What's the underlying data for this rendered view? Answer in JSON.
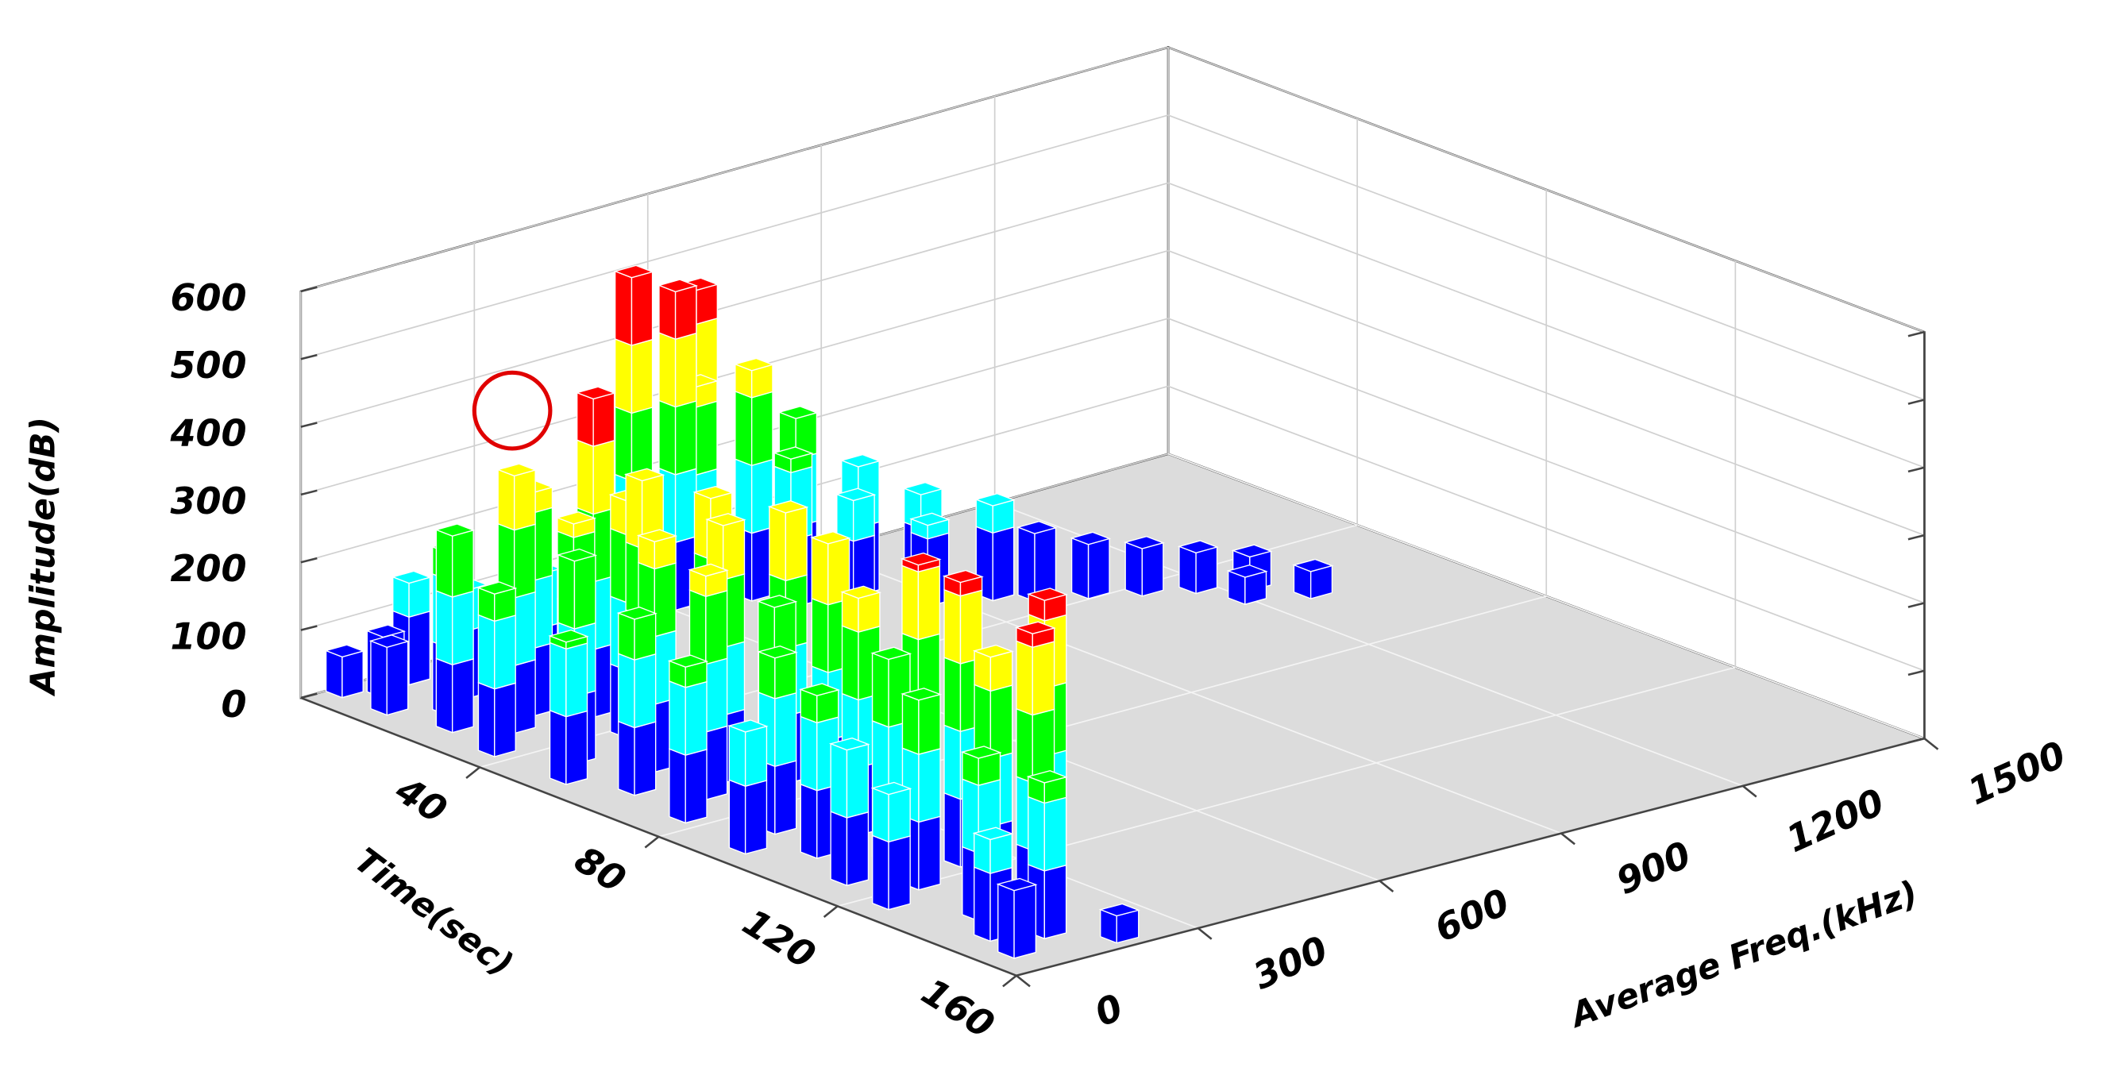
{
  "chart_data": {
    "type": "bar3d",
    "xlabel": "Time(sec)",
    "ylabel": "Average Freq.(kHz)",
    "zlabel": "Amplitude(dB)",
    "xlim": [
      0,
      160
    ],
    "xticks": [
      40,
      80,
      120,
      160
    ],
    "ylim": [
      0,
      1500
    ],
    "yticks": [
      0,
      300,
      600,
      900,
      1200,
      1500
    ],
    "zlim": [
      0,
      600
    ],
    "zticks": [
      0,
      100,
      200,
      300,
      400,
      500,
      600
    ],
    "grid": true,
    "color_levels": [
      100,
      200,
      300,
      400
    ],
    "colors": [
      "#0000ff",
      "#00ffff",
      "#00ff00",
      "#ffff00",
      "#ff0000"
    ],
    "x": [
      2,
      4,
      6,
      8,
      12,
      14,
      18,
      20,
      24,
      26,
      30,
      32,
      36,
      38,
      42,
      46,
      48,
      52,
      56,
      58,
      62,
      66,
      70,
      72,
      76,
      80,
      84,
      88,
      92,
      96,
      100,
      104,
      108,
      112,
      116,
      120,
      124,
      128,
      132,
      136,
      140,
      144,
      148,
      152,
      156,
      2,
      4,
      1,
      6,
      8,
      10,
      14,
      16,
      20,
      22,
      26,
      30,
      34,
      38,
      42,
      46,
      50,
      54,
      58
    ],
    "y": [
      60,
      160,
      100,
      240,
      60,
      180,
      120,
      260,
      80,
      200,
      140,
      260,
      60,
      180,
      240,
      120,
      220,
      60,
      180,
      260,
      100,
      220,
      160,
      280,
      80,
      200,
      260,
      140,
      60,
      220,
      120,
      260,
      180,
      80,
      240,
      140,
      60,
      200,
      260,
      120,
      180,
      80,
      140,
      60,
      200,
      560,
      620,
      680,
      640,
      720,
      780,
      740,
      840,
      800,
      900,
      880,
      960,
      1000,
      1060,
      1120,
      1180,
      1240,
      1200,
      1280
    ],
    "values": [
      60,
      150,
      90,
      110,
      100,
      160,
      240,
      180,
      290,
      330,
      380,
      470,
      240,
      320,
      350,
      300,
      400,
      210,
      340,
      390,
      260,
      380,
      330,
      400,
      230,
      300,
      390,
      260,
      180,
      350,
      240,
      410,
      300,
      200,
      420,
      280,
      170,
      350,
      430,
      240,
      420,
      150,
      230,
      100,
      40,
      500,
      470,
      450,
      330,
      340,
      260,
      220,
      190,
      160,
      150,
      120,
      140,
      100,
      80,
      70,
      60,
      50,
      40,
      40
    ]
  }
}
